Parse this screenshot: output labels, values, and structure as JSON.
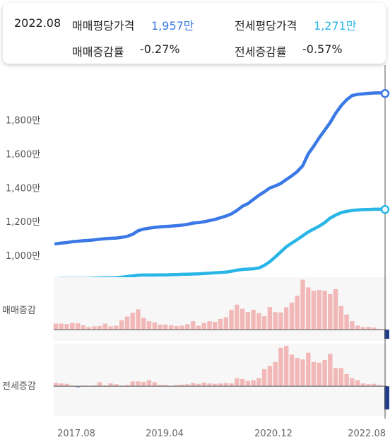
{
  "tooltip": {
    "date": "2022.08",
    "sale_label": "매매평당가격",
    "sale_value": "1,957만",
    "jeonse_label": "전세평당가격",
    "jeonse_value": "1,271만",
    "sale_change_label": "매매증감률",
    "sale_change_value": "-0.27%",
    "jeonse_change_label": "전세증감률",
    "jeonse_change_value": "-0.57%"
  },
  "colors": {
    "sale": "#3a78e6",
    "jeonse": "#29b6e6",
    "bar_positive": "#f2b8b8",
    "bar_negative": "#9fb3e0",
    "bar_current": "#1f3c88",
    "panel_bg": "#f7f7f7"
  },
  "chart_data": [
    {
      "type": "line",
      "x_start": "2017.08",
      "x_end": "2022.08",
      "x_interval": "month",
      "y_ticks": [
        "1,000만",
        "1,200만",
        "1,400만",
        "1,600만",
        "1,800만"
      ],
      "y_tick_values": [
        1000,
        1200,
        1400,
        1600,
        1800
      ],
      "ylim": [
        870,
        2050
      ],
      "series": [
        {
          "name": "매매평당가격",
          "values": [
            1068,
            1072,
            1075,
            1080,
            1083,
            1086,
            1088,
            1091,
            1095,
            1098,
            1100,
            1102,
            1106,
            1112,
            1124,
            1145,
            1155,
            1160,
            1165,
            1168,
            1170,
            1172,
            1175,
            1178,
            1183,
            1190,
            1193,
            1198,
            1205,
            1212,
            1222,
            1232,
            1245,
            1265,
            1290,
            1305,
            1330,
            1355,
            1375,
            1398,
            1410,
            1425,
            1448,
            1470,
            1495,
            1530,
            1600,
            1645,
            1695,
            1740,
            1785,
            1840,
            1885,
            1920,
            1945,
            1952,
            1955,
            1958,
            1960,
            1961,
            1957
          ]
        },
        {
          "name": "전세평당가격",
          "values": [
            861,
            862,
            862,
            862,
            862,
            862,
            863,
            864,
            865,
            866,
            866,
            867,
            870,
            874,
            878,
            882,
            883,
            883,
            883,
            884,
            884,
            885,
            886,
            887,
            888,
            889,
            890,
            892,
            894,
            896,
            898,
            900,
            905,
            912,
            916,
            918,
            920,
            925,
            940,
            962,
            990,
            1020,
            1050,
            1072,
            1093,
            1115,
            1138,
            1155,
            1172,
            1193,
            1220,
            1238,
            1252,
            1260,
            1265,
            1268,
            1270,
            1271,
            1272,
            1273,
            1271
          ]
        }
      ]
    },
    {
      "type": "bar",
      "name": "매매증감",
      "values": [
        0.18,
        0.18,
        0.17,
        0.2,
        0.19,
        0.13,
        0.08,
        0.1,
        0.11,
        0.18,
        0.1,
        0.12,
        0.28,
        0.39,
        0.5,
        0.6,
        0.35,
        0.25,
        0.21,
        0.15,
        0.15,
        0.13,
        0.11,
        0.12,
        0.16,
        0.25,
        0.12,
        0.2,
        0.25,
        0.23,
        0.32,
        0.37,
        0.59,
        0.74,
        0.62,
        0.52,
        0.59,
        0.49,
        0.4,
        0.67,
        0.52,
        0.51,
        0.66,
        0.8,
        1.0,
        1.48,
        1.25,
        1.15,
        1.17,
        1.15,
        1.05,
        1.2,
        0.7,
        0.45,
        0.25,
        0.12,
        0.08,
        0.08,
        0.06,
        0.02,
        -0.27
      ],
      "ylim": [
        -0.33,
        1.55
      ]
    },
    {
      "type": "bar",
      "name": "전세증감",
      "values": [
        0.08,
        0.07,
        0.06,
        0.02,
        -0.03,
        0.02,
        0.01,
        0.02,
        0.1,
        0.02,
        0.07,
        0.05,
        0.01,
        0.03,
        0.12,
        0.12,
        0.11,
        0.15,
        0.1,
        0.03,
        0.03,
        0.01,
        0.03,
        0.04,
        0.05,
        0.08,
        0.06,
        0.09,
        0.07,
        0.06,
        0.07,
        0.08,
        0.07,
        0.2,
        0.18,
        0.13,
        0.15,
        0.2,
        0.42,
        0.5,
        0.6,
        0.95,
        1.0,
        0.78,
        0.7,
        0.66,
        0.83,
        0.6,
        0.58,
        0.65,
        0.8,
        0.45,
        0.45,
        0.3,
        0.2,
        0.15,
        0.07,
        0.05,
        0.06,
        0.03,
        -0.57
      ],
      "ylim": [
        -0.73,
        1.05
      ]
    }
  ],
  "bar_labels": {
    "sale": "매매증감",
    "jeonse": "전세증감"
  },
  "x_axis": {
    "ticks": [
      "2017.08",
      "2019.04",
      "2020.12",
      "2022.08"
    ]
  }
}
